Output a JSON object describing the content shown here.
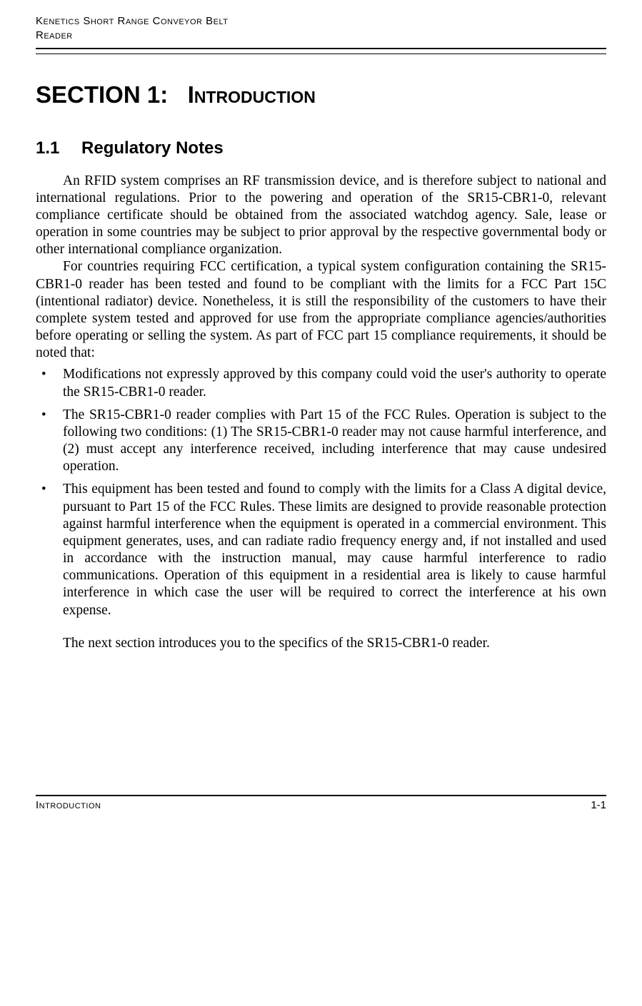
{
  "header": {
    "line1": "Kenetics Short Range Conveyor Belt",
    "line2": "Reader"
  },
  "section": {
    "label": "SECTION 1:",
    "title": "Introduction"
  },
  "subsection": {
    "number": "1.1",
    "title": "Regulatory Notes"
  },
  "paragraphs": {
    "p1": "An RFID system comprises an RF transmission device, and is therefore subject to national and international regulations. Prior to the powering and operation of the SR15-CBR1-0, relevant compliance certificate should be obtained from the associated watchdog agency. Sale, lease or operation in some countries may be subject to prior approval by the respective governmental body or other international compliance organization.",
    "p2": "For countries requiring FCC certification, a typical system configuration containing the SR15-CBR1-0 reader has been tested and found to be compliant with the limits for a FCC Part 15C (intentional radiator) device. Nonetheless, it is still the responsibility of the customers to have their complete system tested and approved for use from the appropriate compliance agencies/authorities before operating or selling the system. As part of FCC part 15 compliance requirements, it should be noted that:"
  },
  "bullets": [
    "Modifications not expressly approved by this company could void the user's authority to operate the SR15-CBR1-0 reader.",
    "The SR15-CBR1-0 reader complies with Part 15 of the FCC Rules. Operation is subject to the following two conditions: (1) The SR15-CBR1-0 reader may not cause harmful interference, and (2) must accept any interference received, including interference that may cause undesired operation.",
    "This equipment has been tested and found to comply with the limits for a Class A digital device, pursuant to Part 15 of the FCC Rules. These limits are designed to provide reasonable protection against harmful interference when the equipment is operated in a commercial environment. This equipment generates, uses, and can radiate radio frequency energy and, if not installed and used in accordance with the instruction manual, may cause harmful interference to radio communications. Operation of this equipment in a residential area is likely to cause harmful interference in which case the user will be required to correct the interference at his own expense."
  ],
  "closing": "The next section introduces you to the specifics of the SR15-CBR1-0 reader.",
  "footer": {
    "left": "Introduction",
    "right": "1-1"
  }
}
